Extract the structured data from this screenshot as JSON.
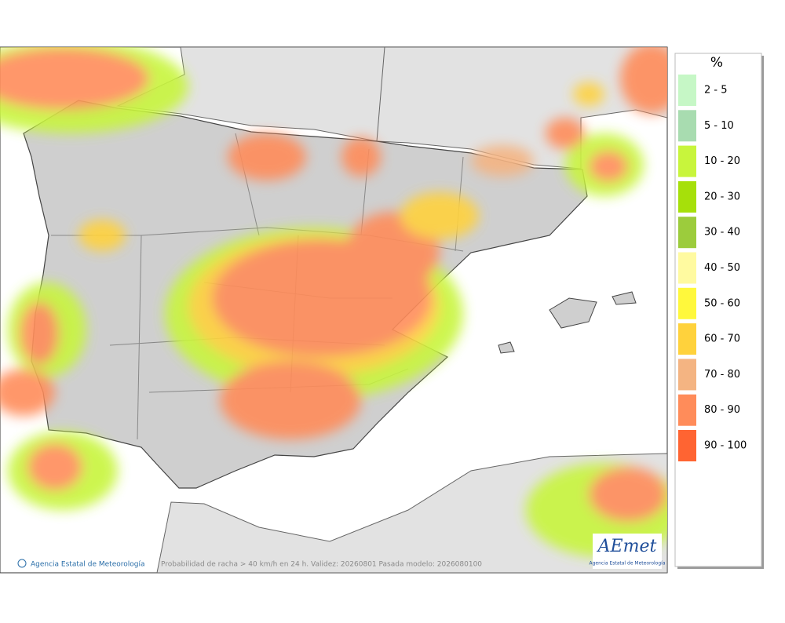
{
  "legend": {
    "title": "%",
    "items": [
      {
        "label": "2 - 5",
        "color": "#c6f7c6"
      },
      {
        "label": "5 - 10",
        "color": "#a8dcb0"
      },
      {
        "label": "10 - 20",
        "color": "#c8f53c"
      },
      {
        "label": "20 - 30",
        "color": "#a6e00a"
      },
      {
        "label": "30 - 40",
        "color": "#9ccc3c"
      },
      {
        "label": "40 - 50",
        "color": "#fffaa0"
      },
      {
        "label": "50 - 60",
        "color": "#fff83c"
      },
      {
        "label": "60 - 70",
        "color": "#ffd23c"
      },
      {
        "label": "70 - 80",
        "color": "#f4b482"
      },
      {
        "label": "80 - 90",
        "color": "#ff8c5a"
      },
      {
        "label": "90 - 100",
        "color": "#ff6432"
      }
    ]
  },
  "footer": {
    "credit": "Agencia Estatal de Meteorología",
    "caption": "Probabilidad de racha > 40 km/h en 24 h. Validez: 20260801 Pasada modelo: 2026080100"
  },
  "logo": {
    "name": "AEmet",
    "subtitle": "Agencia Estatal de Meteorología"
  }
}
